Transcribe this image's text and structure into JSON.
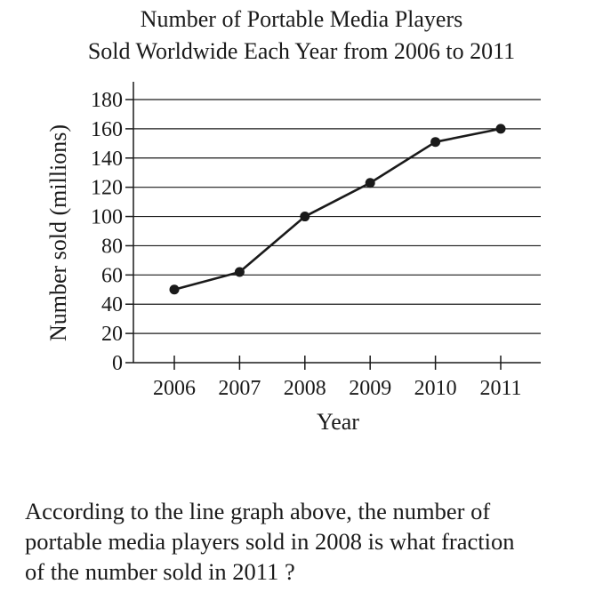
{
  "chart_data": {
    "type": "line",
    "title": [
      "Number of Portable Media Players",
      "Sold Worldwide Each Year from 2006 to 2011"
    ],
    "xlabel": "Year",
    "ylabel": "Number sold (millions)",
    "x": [
      "2006",
      "2007",
      "2008",
      "2009",
      "2010",
      "2011"
    ],
    "series": [
      {
        "values": [
          50,
          62,
          100,
          123,
          151,
          160
        ]
      }
    ],
    "ylim": [
      0,
      180
    ],
    "yticks": [
      "0",
      "20",
      "40",
      "60",
      "80",
      "100",
      "120",
      "140",
      "160",
      "180"
    ],
    "grid": true,
    "line_color": "#1a1a1a"
  },
  "question": {
    "lines": [
      "According to the line graph above, the number of",
      "portable media players sold in 2008 is what fraction",
      "of the number sold in 2011 ?"
    ]
  }
}
